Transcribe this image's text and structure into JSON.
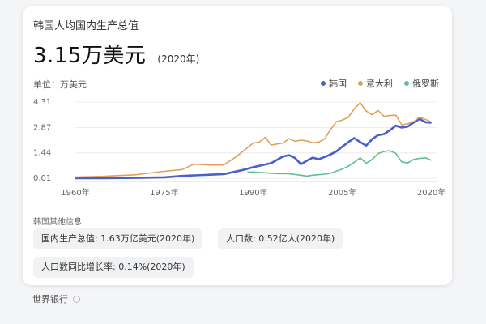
{
  "card": {
    "title": "韩国人均国内生产总值",
    "big_value": "3.15万美元",
    "year_note": "(2020年)",
    "unit_label": "单位：万美元",
    "other_info_label": "韩国其他信息",
    "info_chips": [
      "国内生产总值: 1.63万亿美元(2020年)",
      "人口数: 0.52亿人(2020年)",
      "人口数同比增长率: 0.14%(2020年)"
    ]
  },
  "source_label": "世界银行",
  "chart_data": {
    "type": "line",
    "title": "韩国人均国内生产总值",
    "ylabel": "单位：万美元",
    "ylim": [
      0,
      4.31
    ],
    "yticks": [
      "4.31",
      "2.87",
      "1.44",
      "0.01"
    ],
    "xlim": [
      1960,
      2021
    ],
    "xticks": [
      "1960年",
      "1975年",
      "1990年",
      "2005年",
      "2020年"
    ],
    "series": [
      {
        "name": "韩国",
        "color": "#4a5fc9",
        "points": [
          [
            1960,
            0.01
          ],
          [
            1965,
            0.01
          ],
          [
            1970,
            0.03
          ],
          [
            1975,
            0.06
          ],
          [
            1978,
            0.14
          ],
          [
            1980,
            0.17
          ],
          [
            1983,
            0.21
          ],
          [
            1985,
            0.24
          ],
          [
            1988,
            0.46
          ],
          [
            1990,
            0.63
          ],
          [
            1993,
            0.86
          ],
          [
            1995,
            1.24
          ],
          [
            1996,
            1.31
          ],
          [
            1997,
            1.16
          ],
          [
            1998,
            0.8
          ],
          [
            1999,
            1.0
          ],
          [
            2000,
            1.17
          ],
          [
            2001,
            1.08
          ],
          [
            2002,
            1.21
          ],
          [
            2003,
            1.35
          ],
          [
            2004,
            1.53
          ],
          [
            2005,
            1.8
          ],
          [
            2006,
            2.05
          ],
          [
            2007,
            2.28
          ],
          [
            2008,
            2.05
          ],
          [
            2009,
            1.85
          ],
          [
            2010,
            2.22
          ],
          [
            2011,
            2.44
          ],
          [
            2012,
            2.5
          ],
          [
            2013,
            2.72
          ],
          [
            2014,
            2.98
          ],
          [
            2015,
            2.87
          ],
          [
            2016,
            2.93
          ],
          [
            2017,
            3.16
          ],
          [
            2018,
            3.36
          ],
          [
            2019,
            3.17
          ],
          [
            2020,
            3.15
          ]
        ]
      },
      {
        "name": "意大利",
        "color": "#e0a05a",
        "points": [
          [
            1960,
            0.08
          ],
          [
            1965,
            0.12
          ],
          [
            1970,
            0.2
          ],
          [
            1975,
            0.4
          ],
          [
            1978,
            0.5
          ],
          [
            1980,
            0.8
          ],
          [
            1983,
            0.75
          ],
          [
            1985,
            0.76
          ],
          [
            1987,
            1.2
          ],
          [
            1990,
            2.0
          ],
          [
            1991,
            2.05
          ],
          [
            1992,
            2.32
          ],
          [
            1993,
            1.88
          ],
          [
            1995,
            2.0
          ],
          [
            1996,
            2.25
          ],
          [
            1997,
            2.1
          ],
          [
            1998,
            2.16
          ],
          [
            1999,
            2.12
          ],
          [
            2000,
            2.01
          ],
          [
            2001,
            2.05
          ],
          [
            2002,
            2.23
          ],
          [
            2003,
            2.76
          ],
          [
            2004,
            3.2
          ],
          [
            2005,
            3.3
          ],
          [
            2006,
            3.46
          ],
          [
            2007,
            3.93
          ],
          [
            2008,
            4.27
          ],
          [
            2009,
            3.8
          ],
          [
            2010,
            3.59
          ],
          [
            2011,
            3.84
          ],
          [
            2012,
            3.51
          ],
          [
            2013,
            3.55
          ],
          [
            2014,
            3.57
          ],
          [
            2015,
            3.02
          ],
          [
            2016,
            3.09
          ],
          [
            2017,
            3.21
          ],
          [
            2018,
            3.46
          ],
          [
            2019,
            3.33
          ],
          [
            2020,
            3.18
          ]
        ]
      },
      {
        "name": "俄罗斯",
        "color": "#5fbf8f",
        "points": [
          [
            1989,
            0.35
          ],
          [
            1990,
            0.36
          ],
          [
            1992,
            0.31
          ],
          [
            1994,
            0.27
          ],
          [
            1996,
            0.26
          ],
          [
            1998,
            0.18
          ],
          [
            1999,
            0.13
          ],
          [
            2000,
            0.18
          ],
          [
            2002,
            0.24
          ],
          [
            2003,
            0.29
          ],
          [
            2004,
            0.41
          ],
          [
            2005,
            0.53
          ],
          [
            2006,
            0.69
          ],
          [
            2007,
            0.91
          ],
          [
            2008,
            1.16
          ],
          [
            2009,
            0.85
          ],
          [
            2010,
            1.07
          ],
          [
            2011,
            1.4
          ],
          [
            2012,
            1.52
          ],
          [
            2013,
            1.56
          ],
          [
            2014,
            1.41
          ],
          [
            2015,
            0.93
          ],
          [
            2016,
            0.87
          ],
          [
            2017,
            1.07
          ],
          [
            2018,
            1.13
          ],
          [
            2019,
            1.16
          ],
          [
            2020,
            1.02
          ]
        ]
      }
    ]
  }
}
